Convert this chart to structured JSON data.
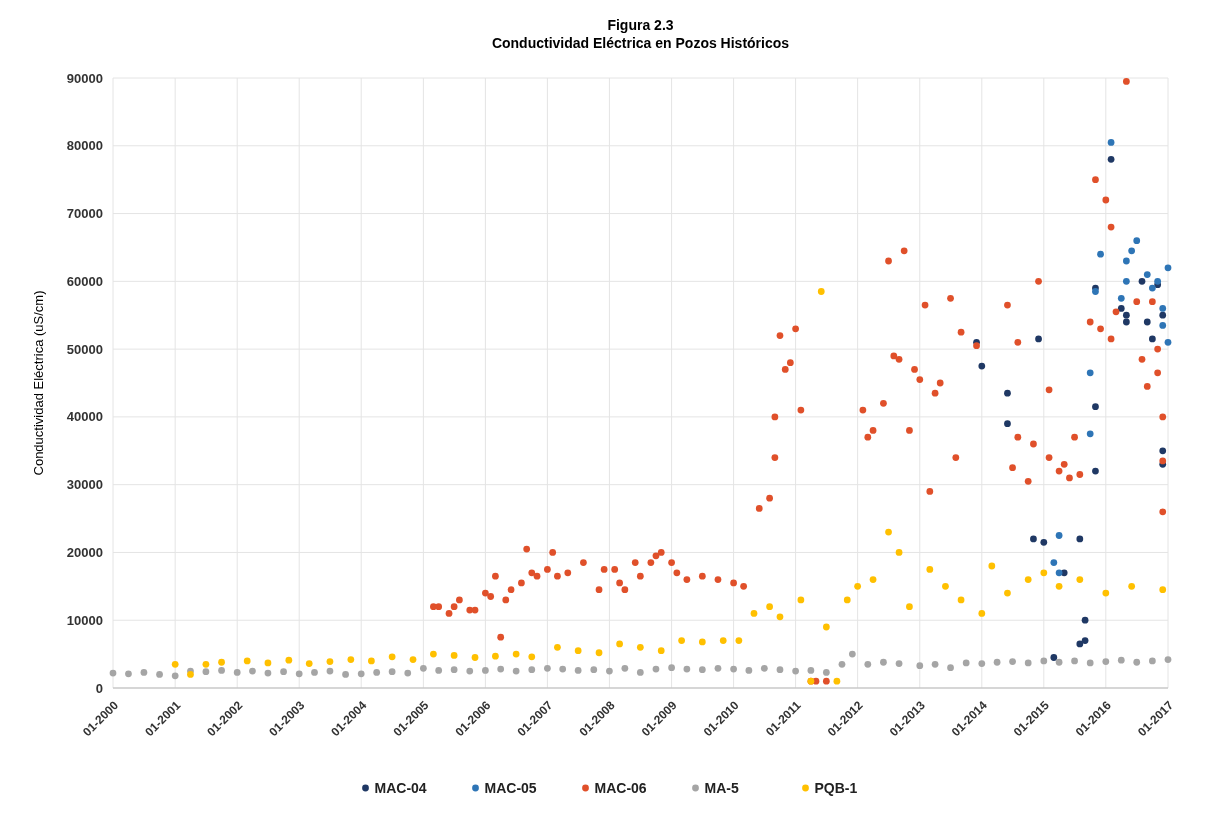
{
  "chart_data": {
    "type": "scatter",
    "title": "Figura 2.3",
    "subtitle": "Conductividad Eléctrica en Pozos Históricos",
    "ylabel": "Conductividad Eléctrica (uS/cm)",
    "xlim": [
      "2000-01",
      "2017-01"
    ],
    "xticks": [
      {
        "value": "2000-01",
        "label": "01-2000"
      },
      {
        "value": "2001-01",
        "label": "01-2001"
      },
      {
        "value": "2002-01",
        "label": "01-2002"
      },
      {
        "value": "2003-01",
        "label": "01-2003"
      },
      {
        "value": "2004-01",
        "label": "01-2004"
      },
      {
        "value": "2005-01",
        "label": "01-2005"
      },
      {
        "value": "2006-01",
        "label": "01-2006"
      },
      {
        "value": "2007-01",
        "label": "01-2007"
      },
      {
        "value": "2008-01",
        "label": "01-2008"
      },
      {
        "value": "2009-01",
        "label": "01-2009"
      },
      {
        "value": "2010-01",
        "label": "01-2010"
      },
      {
        "value": "2011-01",
        "label": "01-2011"
      },
      {
        "value": "2012-01",
        "label": "01-2012"
      },
      {
        "value": "2013-01",
        "label": "01-2013"
      },
      {
        "value": "2014-01",
        "label": "01-2014"
      },
      {
        "value": "2015-01",
        "label": "01-2015"
      },
      {
        "value": "2016-01",
        "label": "01-2016"
      },
      {
        "value": "2017-01",
        "label": "01-2017"
      }
    ],
    "ylim": [
      0,
      90000
    ],
    "yticks": [
      0,
      10000,
      20000,
      30000,
      40000,
      50000,
      60000,
      70000,
      80000,
      90000
    ],
    "grid": true,
    "legend": "bottom",
    "marker": "circle",
    "series": [
      {
        "name": "MAC-04",
        "color": "#1f3864",
        "x": [
          "2013-12",
          "2014-01",
          "2014-06",
          "2014-06",
          "2014-11",
          "2014-12",
          "2015-01",
          "2015-03",
          "2015-05",
          "2015-08",
          "2015-09",
          "2015-09",
          "2015-08",
          "2015-11",
          "2015-11",
          "2015-11",
          "2016-02",
          "2016-04",
          "2016-05",
          "2016-05",
          "2016-08",
          "2016-09",
          "2016-10",
          "2016-11",
          "2016-12",
          "2016-12",
          "2016-12"
        ],
        "values": [
          51000,
          47500,
          39000,
          43500,
          22000,
          51500,
          21500,
          4500,
          17000,
          6500,
          7000,
          10000,
          22000,
          32000,
          41500,
          59000,
          78000,
          56000,
          54000,
          55000,
          60000,
          54000,
          51500,
          59500,
          55000,
          35000,
          33000
        ]
      },
      {
        "name": "MAC-05",
        "color": "#2e75b6",
        "x": [
          "2015-03",
          "2015-04",
          "2015-04",
          "2015-10",
          "2015-10",
          "2015-11",
          "2015-12",
          "2016-02",
          "2016-04",
          "2016-05",
          "2016-05",
          "2016-06",
          "2016-07",
          "2016-09",
          "2016-10",
          "2016-11",
          "2016-12",
          "2016-12",
          "2017-01",
          "2017-01"
        ],
        "values": [
          18500,
          22500,
          17000,
          37500,
          46500,
          58500,
          64000,
          80500,
          57500,
          60000,
          63000,
          64500,
          66000,
          61000,
          59000,
          60000,
          56000,
          53500,
          51000,
          62000
        ]
      },
      {
        "name": "MAC-06",
        "color": "#e0502a",
        "x": [
          "2005-03",
          "2005-04",
          "2005-06",
          "2005-07",
          "2005-08",
          "2005-10",
          "2005-11",
          "2006-01",
          "2006-02",
          "2006-03",
          "2006-04",
          "2006-05",
          "2006-06",
          "2006-08",
          "2006-09",
          "2006-10",
          "2006-11",
          "2007-01",
          "2007-02",
          "2007-03",
          "2007-05",
          "2007-08",
          "2007-11",
          "2007-12",
          "2008-02",
          "2008-03",
          "2008-04",
          "2008-06",
          "2008-07",
          "2008-09",
          "2008-10",
          "2008-11",
          "2009-01",
          "2009-02",
          "2009-04",
          "2009-07",
          "2009-10",
          "2010-01",
          "2010-03",
          "2010-06",
          "2010-08",
          "2010-09",
          "2010-09",
          "2010-10",
          "2010-11",
          "2010-12",
          "2011-01",
          "2011-02",
          "2011-04",
          "2011-05",
          "2011-07",
          "2012-02",
          "2012-03",
          "2012-04",
          "2012-06",
          "2012-07",
          "2012-08",
          "2012-09",
          "2012-10",
          "2012-11",
          "2012-12",
          "2013-01",
          "2013-02",
          "2013-03",
          "2013-04",
          "2013-05",
          "2013-07",
          "2013-08",
          "2013-09",
          "2013-12",
          "2014-06",
          "2014-08",
          "2014-07",
          "2014-08",
          "2014-10",
          "2014-11",
          "2014-12",
          "2015-02",
          "2015-02",
          "2015-04",
          "2015-05",
          "2015-06",
          "2015-07",
          "2015-08",
          "2015-10",
          "2015-11",
          "2015-12",
          "2016-01",
          "2016-02",
          "2016-02",
          "2016-03",
          "2016-05",
          "2016-07",
          "2016-08",
          "2016-09",
          "2016-10",
          "2016-11",
          "2016-11",
          "2016-12",
          "2016-12",
          "2016-12"
        ],
        "values": [
          12000,
          12000,
          11000,
          12000,
          13000,
          11500,
          11500,
          14000,
          13500,
          16500,
          7500,
          13000,
          14500,
          15500,
          20500,
          17000,
          16500,
          17500,
          20000,
          16500,
          17000,
          18500,
          14500,
          17500,
          17500,
          15500,
          14500,
          18500,
          16500,
          18500,
          19500,
          20000,
          18500,
          17000,
          16000,
          16500,
          16000,
          15500,
          15000,
          26500,
          28000,
          34000,
          40000,
          52000,
          47000,
          48000,
          53000,
          41000,
          1000,
          1000,
          1000,
          41000,
          37000,
          38000,
          42000,
          63000,
          49000,
          48500,
          64500,
          38000,
          47000,
          45500,
          56500,
          29000,
          43500,
          45000,
          57500,
          34000,
          52500,
          50500,
          56500,
          51000,
          32500,
          37000,
          30500,
          36000,
          60000,
          34000,
          44000,
          32000,
          33000,
          31000,
          37000,
          31500,
          54000,
          75000,
          53000,
          72000,
          68000,
          51500,
          55500,
          89500,
          57000,
          48500,
          44500,
          57000,
          50000,
          46500,
          26000,
          33500,
          40000
        ]
      },
      {
        "name": "MA-5",
        "color": "#a5a5a5",
        "x": [
          "2000-01",
          "2000-04",
          "2000-07",
          "2000-10",
          "2001-01",
          "2001-04",
          "2001-07",
          "2001-10",
          "2002-01",
          "2002-04",
          "2002-07",
          "2002-10",
          "2003-01",
          "2003-04",
          "2003-07",
          "2003-10",
          "2004-01",
          "2004-04",
          "2004-07",
          "2004-10",
          "2005-01",
          "2005-04",
          "2005-07",
          "2005-10",
          "2006-01",
          "2006-04",
          "2006-07",
          "2006-10",
          "2007-01",
          "2007-04",
          "2007-07",
          "2007-10",
          "2008-01",
          "2008-04",
          "2008-07",
          "2008-10",
          "2009-01",
          "2009-04",
          "2009-07",
          "2009-10",
          "2010-01",
          "2010-04",
          "2010-07",
          "2010-10",
          "2011-01",
          "2011-04",
          "2011-07",
          "2011-10",
          "2011-12",
          "2012-03",
          "2012-06",
          "2012-09",
          "2013-01",
          "2013-04",
          "2013-07",
          "2013-10",
          "2014-01",
          "2014-04",
          "2014-07",
          "2014-10",
          "2015-01",
          "2015-04",
          "2015-07",
          "2015-10",
          "2016-01",
          "2016-04",
          "2016-07",
          "2016-10",
          "2017-01"
        ],
        "values": [
          2200,
          2100,
          2300,
          2000,
          1800,
          2500,
          2400,
          2600,
          2300,
          2500,
          2200,
          2400,
          2100,
          2300,
          2500,
          2000,
          2100,
          2300,
          2400,
          2200,
          2900,
          2600,
          2700,
          2500,
          2600,
          2800,
          2500,
          2700,
          2900,
          2800,
          2600,
          2700,
          2500,
          2900,
          2300,
          2800,
          3000,
          2800,
          2700,
          2900,
          2800,
          2600,
          2900,
          2700,
          2500,
          2600,
          2300,
          3500,
          5000,
          3500,
          3800,
          3600,
          3300,
          3500,
          3000,
          3700,
          3600,
          3800,
          3900,
          3700,
          4000,
          3800,
          4000,
          3700,
          3900,
          4100,
          3800,
          4000,
          4200
        ]
      },
      {
        "name": "PQB-1",
        "color": "#ffc000",
        "x": [
          "2001-01",
          "2001-04",
          "2001-07",
          "2001-10",
          "2002-03",
          "2002-07",
          "2002-11",
          "2003-03",
          "2003-07",
          "2003-11",
          "2004-03",
          "2004-07",
          "2004-11",
          "2005-03",
          "2005-07",
          "2005-11",
          "2006-03",
          "2006-07",
          "2006-10",
          "2007-03",
          "2007-07",
          "2007-11",
          "2008-03",
          "2008-07",
          "2008-11",
          "2009-03",
          "2009-07",
          "2009-11",
          "2010-02",
          "2010-05",
          "2010-08",
          "2010-10",
          "2011-02",
          "2011-04",
          "2011-06",
          "2011-07",
          "2011-09",
          "2011-11",
          "2012-01",
          "2012-04",
          "2012-07",
          "2012-09",
          "2012-11",
          "2013-03",
          "2013-06",
          "2013-09",
          "2014-01",
          "2014-03",
          "2014-06",
          "2014-10",
          "2015-01",
          "2015-04",
          "2015-08",
          "2016-01",
          "2016-06",
          "2016-12"
        ],
        "values": [
          3500,
          2000,
          3500,
          3800,
          4000,
          3700,
          4100,
          3600,
          3900,
          4200,
          4000,
          4600,
          4200,
          5000,
          4800,
          4500,
          4700,
          5000,
          4600,
          6000,
          5500,
          5200,
          6500,
          6000,
          5500,
          7000,
          6800,
          7000,
          7000,
          11000,
          12000,
          10500,
          13000,
          1000,
          58500,
          9000,
          1000,
          13000,
          15000,
          16000,
          23000,
          20000,
          12000,
          17500,
          15000,
          13000,
          11000,
          18000,
          14000,
          16000,
          17000,
          15000,
          16000,
          14000,
          15000,
          14500
        ]
      }
    ]
  }
}
